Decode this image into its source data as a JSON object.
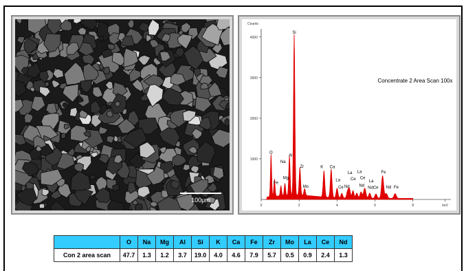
{
  "sem_image": {
    "scale_bar_label": "100μm",
    "description_icon": "sem-micrograph"
  },
  "chart_data": {
    "type": "line",
    "title": "Concentrate 2 Area Scan 100x",
    "xlabel": "keV",
    "ylabel": "Counts",
    "xlim": [
      0,
      10
    ],
    "ylim": [
      0,
      4200
    ],
    "x_ticks": [
      "0",
      "2",
      "4",
      "6",
      "8",
      "keV"
    ],
    "y_ticks": [
      "1000",
      "2000",
      "3000",
      "4000"
    ],
    "line_color": "#e00000",
    "background_color": "#ffffff",
    "peaks": [
      {
        "label": "O",
        "x": 0.52,
        "y": 1050
      },
      {
        "label": "Fe",
        "x": 0.7,
        "y": 430
      },
      {
        "label": "Na",
        "x": 1.04,
        "y": 250
      },
      {
        "label": "Mg",
        "x": 1.25,
        "y": 300
      },
      {
        "label": "Al",
        "x": 1.49,
        "y": 980
      },
      {
        "label": "Si",
        "x": 1.74,
        "y": 4000
      },
      {
        "label": "Zr",
        "x": 2.04,
        "y": 690
      },
      {
        "label": "Mo",
        "x": 2.29,
        "y": 170
      },
      {
        "label": "K",
        "x": 3.31,
        "y": 650
      },
      {
        "label": "Ca",
        "x": 3.69,
        "y": 700
      },
      {
        "label": "La",
        "x": 4.0,
        "y": 240
      },
      {
        "label": "Ce",
        "x": 4.25,
        "y": 120
      },
      {
        "label": "Nd",
        "x": 4.55,
        "y": 160
      },
      {
        "label": "La",
        "x": 4.65,
        "y": 230
      },
      {
        "label": "Ce",
        "x": 4.84,
        "y": 190
      },
      {
        "label": "La",
        "x": 5.04,
        "y": 130
      },
      {
        "label": "Ce",
        "x": 5.26,
        "y": 160
      },
      {
        "label": "Nd",
        "x": 5.42,
        "y": 110
      },
      {
        "label": "La",
        "x": 5.48,
        "y": 180
      },
      {
        "label": "Nd",
        "x": 5.72,
        "y": 130
      },
      {
        "label": "Ce",
        "x": 6.05,
        "y": 110
      },
      {
        "label": "Fe",
        "x": 6.4,
        "y": 560
      },
      {
        "label": "Nd",
        "x": 6.6,
        "y": 120
      },
      {
        "label": "Fe",
        "x": 7.06,
        "y": 120
      }
    ],
    "peak_labels": [
      {
        "text": "Si",
        "x": 1.74,
        "y": 4080
      },
      {
        "text": "O",
        "x": 0.52,
        "y": 1130
      },
      {
        "text": "Na",
        "x": 1.15,
        "y": 900
      },
      {
        "text": "Al",
        "x": 1.55,
        "y": 1060
      },
      {
        "text": "Zr",
        "x": 2.15,
        "y": 780
      },
      {
        "text": "Mg",
        "x": 1.3,
        "y": 500
      },
      {
        "text": "Fe",
        "x": 0.78,
        "y": 380
      },
      {
        "text": "Mo",
        "x": 2.35,
        "y": 290
      },
      {
        "text": "K",
        "x": 3.2,
        "y": 770
      },
      {
        "text": "Ca",
        "x": 3.75,
        "y": 770
      },
      {
        "text": "La",
        "x": 4.05,
        "y": 450
      },
      {
        "text": "Ce",
        "x": 4.2,
        "y": 270
      },
      {
        "text": "Nd",
        "x": 4.52,
        "y": 290
      },
      {
        "text": "La",
        "x": 4.68,
        "y": 630
      },
      {
        "text": "La",
        "x": 5.18,
        "y": 650
      },
      {
        "text": "Ce",
        "x": 4.85,
        "y": 470
      },
      {
        "text": "Ce",
        "x": 5.35,
        "y": 500
      },
      {
        "text": "Nd",
        "x": 5.3,
        "y": 310
      },
      {
        "text": "La",
        "x": 5.8,
        "y": 420
      },
      {
        "text": "NdCe",
        "x": 5.9,
        "y": 260
      },
      {
        "text": "Fe",
        "x": 6.45,
        "y": 640
      },
      {
        "text": "Nd",
        "x": 6.72,
        "y": 270
      },
      {
        "text": "Fe",
        "x": 7.12,
        "y": 270
      }
    ]
  },
  "composition_table": {
    "headers": [
      "O",
      "Na",
      "Mg",
      "Al",
      "Si",
      "K",
      "Ca",
      "Fe",
      "Zr",
      "Mo",
      "La",
      "Ce",
      "Nd"
    ],
    "rows": [
      {
        "label": "Con 2 area scan",
        "values": [
          "47.7",
          "1.3",
          "1.2",
          "3.7",
          "19.0",
          "4.0",
          "4.6",
          "7.9",
          "5.7",
          "0.5",
          "0.9",
          "2.4",
          "1.3"
        ]
      }
    ],
    "header_color": "#33ccff"
  }
}
